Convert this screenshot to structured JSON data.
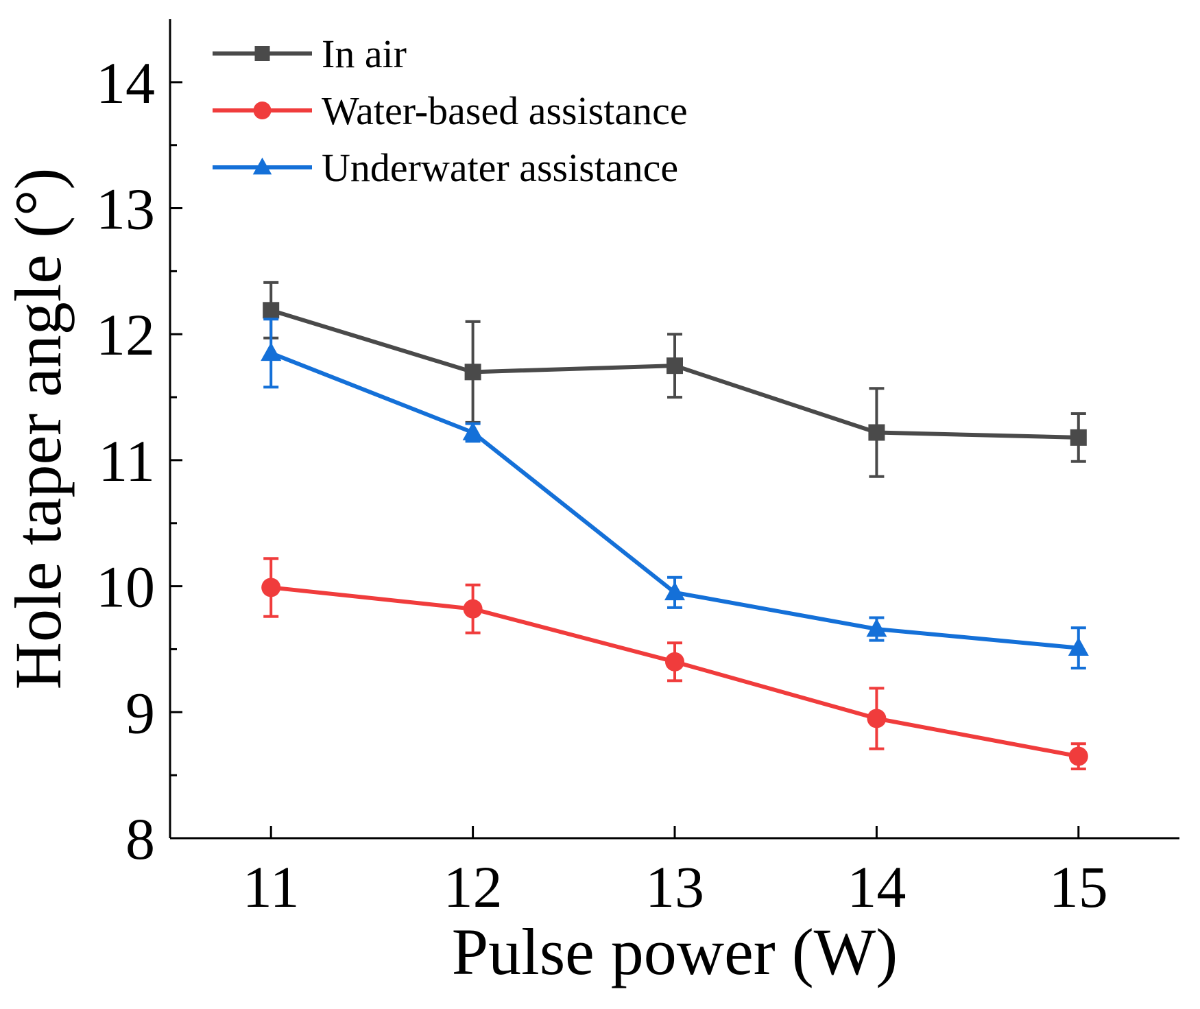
{
  "chart_data": {
    "type": "line",
    "xlabel": "Pulse power (W)",
    "ylabel": "Hole taper angle (°)",
    "x": [
      11,
      12,
      13,
      14,
      15
    ],
    "xticks": [
      "11",
      "12",
      "13",
      "14",
      "15"
    ],
    "yticks": [
      "8",
      "9",
      "10",
      "11",
      "12",
      "13",
      "14"
    ],
    "xlim": [
      10.5,
      15.5
    ],
    "ylim": [
      8,
      14.5
    ],
    "legend_position": "top-left",
    "grid": false,
    "series": [
      {
        "name": "In air",
        "color": "#4a4a4a",
        "marker": "square",
        "values": [
          12.19,
          11.7,
          11.75,
          11.22,
          11.18
        ],
        "errors": [
          0.22,
          0.4,
          0.25,
          0.35,
          0.19
        ]
      },
      {
        "name": "Water-based assistance",
        "color": "#f03c3c",
        "marker": "circle",
        "values": [
          9.99,
          9.82,
          9.4,
          8.95,
          8.65
        ],
        "errors": [
          0.23,
          0.19,
          0.15,
          0.24,
          0.1
        ]
      },
      {
        "name": "Underwater assistance",
        "color": "#1470d8",
        "marker": "triangle",
        "values": [
          11.85,
          11.22,
          9.95,
          9.66,
          9.51
        ],
        "errors": [
          0.27,
          0.07,
          0.12,
          0.09,
          0.16
        ]
      }
    ]
  }
}
